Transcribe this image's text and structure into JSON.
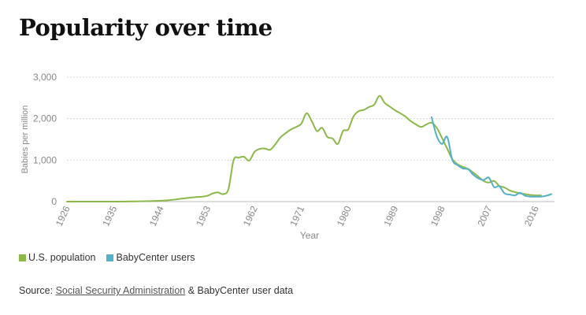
{
  "page": {
    "title": "Popularity over time"
  },
  "legend": {
    "items": [
      {
        "label": "U.S. population",
        "color": "#8cb84a"
      },
      {
        "label": "BabyCenter users",
        "color": "#55b1c9"
      }
    ]
  },
  "source": {
    "prefix": "Source: ",
    "link_text": "Social Security Administration",
    "suffix": " & BabyCenter user data"
  },
  "chart_data": {
    "type": "line",
    "xlabel": "Year",
    "ylabel": "Babies per million",
    "xlim": [
      1926,
      2019
    ],
    "ylim": [
      0,
      3000
    ],
    "x_ticks": [
      1926,
      1935,
      1944,
      1953,
      1962,
      1971,
      1980,
      1989,
      1998,
      2007,
      2016
    ],
    "y_ticks": [
      0,
      1000,
      2000,
      3000
    ],
    "y_tick_labels": [
      "0",
      "1,000",
      "2,000",
      "3,000"
    ],
    "grid": "horizontal dotted",
    "legend_position": "bottom-left",
    "series": [
      {
        "name": "U.S. population",
        "color": "#8cb84a",
        "points": [
          [
            1926,
            0
          ],
          [
            1935,
            0
          ],
          [
            1939,
            5
          ],
          [
            1944,
            20
          ],
          [
            1946,
            40
          ],
          [
            1948,
            70
          ],
          [
            1950,
            100
          ],
          [
            1952,
            120
          ],
          [
            1953,
            140
          ],
          [
            1954,
            200
          ],
          [
            1955,
            220
          ],
          [
            1956,
            180
          ],
          [
            1957,
            300
          ],
          [
            1958,
            1000
          ],
          [
            1959,
            1060
          ],
          [
            1960,
            1080
          ],
          [
            1961,
            990
          ],
          [
            1962,
            1200
          ],
          [
            1963,
            1270
          ],
          [
            1964,
            1280
          ],
          [
            1965,
            1250
          ],
          [
            1966,
            1380
          ],
          [
            1967,
            1550
          ],
          [
            1968,
            1650
          ],
          [
            1969,
            1740
          ],
          [
            1970,
            1800
          ],
          [
            1971,
            1880
          ],
          [
            1972,
            2130
          ],
          [
            1973,
            1940
          ],
          [
            1974,
            1700
          ],
          [
            1975,
            1780
          ],
          [
            1976,
            1560
          ],
          [
            1977,
            1520
          ],
          [
            1978,
            1390
          ],
          [
            1979,
            1700
          ],
          [
            1980,
            1740
          ],
          [
            1981,
            2050
          ],
          [
            1982,
            2180
          ],
          [
            1983,
            2210
          ],
          [
            1984,
            2280
          ],
          [
            1985,
            2340
          ],
          [
            1986,
            2550
          ],
          [
            1987,
            2380
          ],
          [
            1988,
            2290
          ],
          [
            1989,
            2200
          ],
          [
            1990,
            2130
          ],
          [
            1991,
            2050
          ],
          [
            1992,
            1940
          ],
          [
            1993,
            1860
          ],
          [
            1994,
            1800
          ],
          [
            1995,
            1860
          ],
          [
            1996,
            1900
          ],
          [
            1997,
            1780
          ],
          [
            1998,
            1540
          ],
          [
            1999,
            1280
          ],
          [
            2000,
            1020
          ],
          [
            2001,
            900
          ],
          [
            2002,
            840
          ],
          [
            2003,
            790
          ],
          [
            2004,
            700
          ],
          [
            2005,
            600
          ],
          [
            2006,
            500
          ],
          [
            2007,
            460
          ],
          [
            2008,
            500
          ],
          [
            2009,
            380
          ],
          [
            2010,
            340
          ],
          [
            2011,
            270
          ],
          [
            2012,
            230
          ],
          [
            2013,
            200
          ],
          [
            2014,
            180
          ],
          [
            2015,
            160
          ],
          [
            2016,
            150
          ],
          [
            2017,
            150
          ]
        ]
      },
      {
        "name": "BabyCenter users",
        "color": "#55b1c9",
        "points": [
          [
            1996,
            2040
          ],
          [
            1997,
            1580
          ],
          [
            1998,
            1390
          ],
          [
            1999,
            1560
          ],
          [
            2000,
            1000
          ],
          [
            2001,
            880
          ],
          [
            2002,
            800
          ],
          [
            2003,
            780
          ],
          [
            2004,
            650
          ],
          [
            2005,
            560
          ],
          [
            2006,
            520
          ],
          [
            2007,
            580
          ],
          [
            2008,
            350
          ],
          [
            2009,
            370
          ],
          [
            2010,
            200
          ],
          [
            2011,
            170
          ],
          [
            2012,
            150
          ],
          [
            2013,
            210
          ],
          [
            2014,
            140
          ],
          [
            2015,
            120
          ],
          [
            2016,
            120
          ],
          [
            2017,
            120
          ],
          [
            2018,
            140
          ],
          [
            2019,
            180
          ]
        ]
      }
    ]
  }
}
